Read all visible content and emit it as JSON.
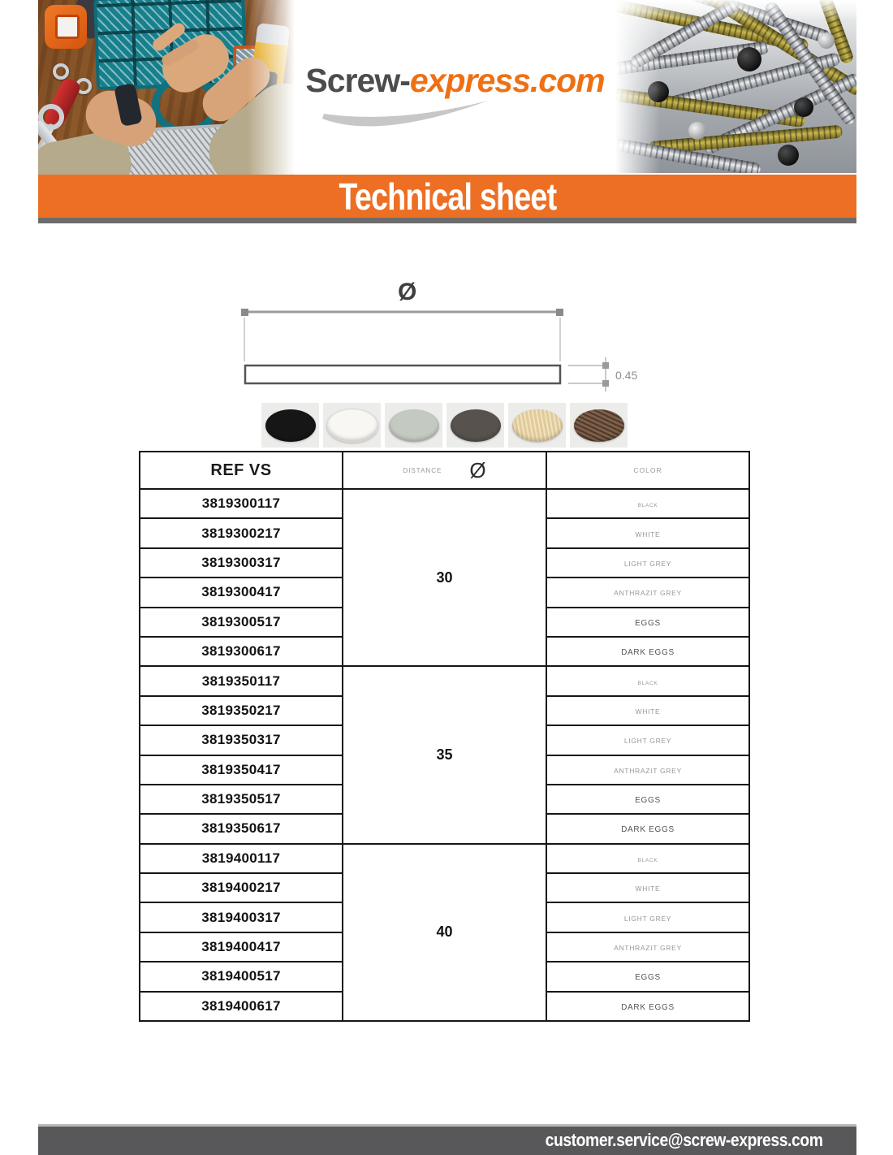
{
  "header": {
    "logo_part1": "Screw-",
    "logo_part2": "express.com",
    "banner_title": "Technical sheet"
  },
  "diagram": {
    "diameter_symbol": "Ø",
    "thickness_value": "0.45"
  },
  "swatches": [
    {
      "name": "black",
      "color": "#161616"
    },
    {
      "name": "white",
      "color": "#f8f7f3"
    },
    {
      "name": "light-grey",
      "color": "#c4c9c1"
    },
    {
      "name": "anthrazit-grey",
      "color": "#57524d"
    },
    {
      "name": "eggs",
      "color": "#e9d2a0"
    },
    {
      "name": "dark-eggs",
      "color": "#6e4e38"
    }
  ],
  "table": {
    "col_ref": "REF VS",
    "col_distance": "DISTANCE",
    "col_distance_symbol": "Ø",
    "col_color": "COLOR",
    "groups": [
      {
        "distance": "30",
        "rows": [
          {
            "ref": "3819300117",
            "color": "BLACK"
          },
          {
            "ref": "3819300217",
            "color": "WHITE"
          },
          {
            "ref": "3819300317",
            "color": "LIGHT GREY"
          },
          {
            "ref": "3819300417",
            "color": "ANTHRAZIT GREY"
          },
          {
            "ref": "3819300517",
            "color": "EGGS"
          },
          {
            "ref": "3819300617",
            "color": "DARK EGGS"
          }
        ]
      },
      {
        "distance": "35",
        "rows": [
          {
            "ref": "3819350117",
            "color": "BLACK"
          },
          {
            "ref": "3819350217",
            "color": "WHITE"
          },
          {
            "ref": "3819350317",
            "color": "LIGHT GREY"
          },
          {
            "ref": "3819350417",
            "color": "ANTHRAZIT GREY"
          },
          {
            "ref": "3819350517",
            "color": "EGGS"
          },
          {
            "ref": "3819350617",
            "color": "DARK EGGS"
          }
        ]
      },
      {
        "distance": "40",
        "rows": [
          {
            "ref": "3819400117",
            "color": "BLACK"
          },
          {
            "ref": "3819400217",
            "color": "WHITE"
          },
          {
            "ref": "3819400317",
            "color": "LIGHT GREY"
          },
          {
            "ref": "3819400417",
            "color": "ANTHRAZIT GREY"
          },
          {
            "ref": "3819400517",
            "color": "EGGS"
          },
          {
            "ref": "3819400617",
            "color": "DARK EGGS"
          }
        ]
      }
    ]
  },
  "footer": {
    "email": "customer.service@screw-express.com"
  }
}
